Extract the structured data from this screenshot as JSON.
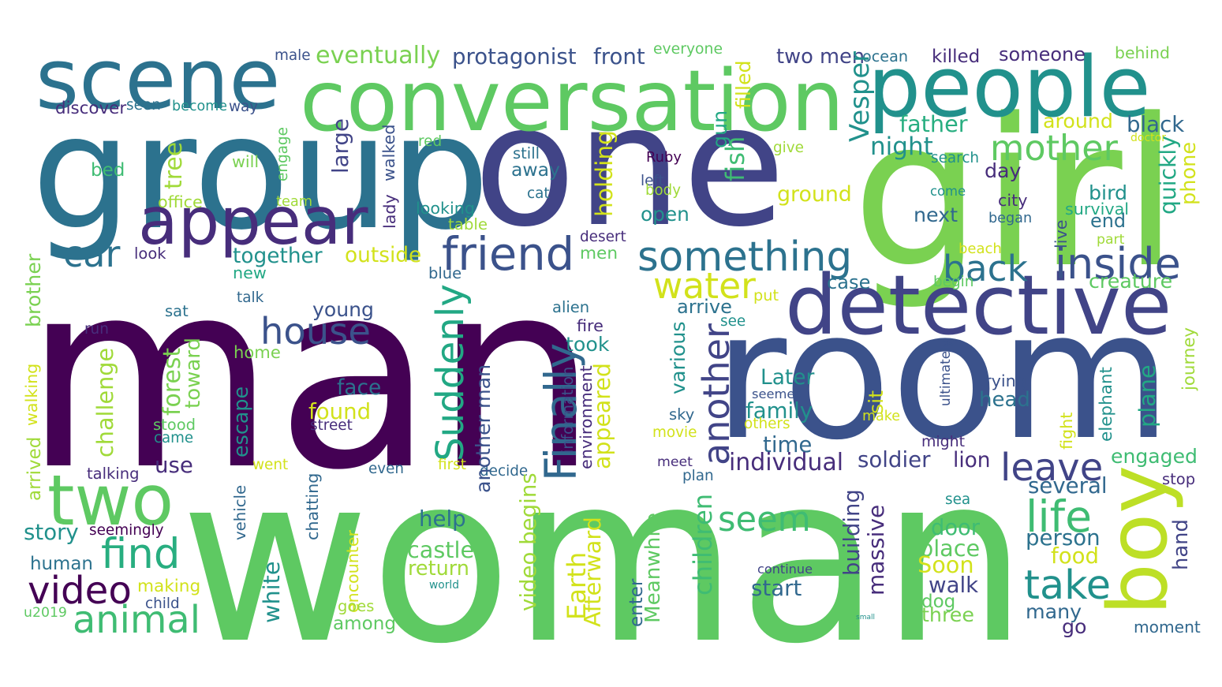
{
  "words": [
    {
      "text": "man",
      "color": "#440154"
    },
    {
      "text": "woman",
      "color": "#5ec962"
    },
    {
      "text": "room",
      "color": "#3b528b"
    },
    {
      "text": "group",
      "color": "#2c728e"
    },
    {
      "text": "one",
      "color": "#414487"
    },
    {
      "text": "girl",
      "color": "#7ad151"
    },
    {
      "text": "conversation",
      "color": "#5ec962"
    },
    {
      "text": "people",
      "color": "#21918c"
    },
    {
      "text": "scene",
      "color": "#2c728e"
    },
    {
      "text": "detective",
      "color": "#414487"
    },
    {
      "text": "appear",
      "color": "#472d7b"
    },
    {
      "text": "two",
      "color": "#5ec962"
    },
    {
      "text": "boy",
      "color": "#bddf26"
    },
    {
      "text": "friend",
      "color": "#3b528b"
    },
    {
      "text": "something",
      "color": "#2c728e"
    },
    {
      "text": "video",
      "color": "#440154"
    },
    {
      "text": "find",
      "color": "#28ae80"
    },
    {
      "text": "animal",
      "color": "#3fbc73"
    },
    {
      "text": "inside",
      "color": "#3b528b"
    },
    {
      "text": "back",
      "color": "#2c728e"
    },
    {
      "text": "water",
      "color": "#d2e21b"
    },
    {
      "text": "house",
      "color": "#3b528b"
    },
    {
      "text": "seem",
      "color": "#3fbc73"
    },
    {
      "text": "take",
      "color": "#21918c"
    },
    {
      "text": "life",
      "color": "#3fbc73"
    },
    {
      "text": "leave",
      "color": "#414487"
    },
    {
      "text": "another",
      "color": "#414487"
    },
    {
      "text": "Finally",
      "color": "#31688e"
    },
    {
      "text": "Suddenly",
      "color": "#22a884"
    },
    {
      "text": "mother",
      "color": "#5ec962"
    },
    {
      "text": "car",
      "color": "#2c728e"
    },
    {
      "text": "eventually",
      "color": "#7ad151"
    },
    {
      "text": "protagonist",
      "color": "#3b528b"
    },
    {
      "text": "front",
      "color": "#3b528b"
    },
    {
      "text": "everyone",
      "color": "#5ec962"
    },
    {
      "text": "filled",
      "color": "#d2e21b"
    },
    {
      "text": "two men",
      "color": "#414487"
    },
    {
      "text": "ocean",
      "color": "#2c728e"
    },
    {
      "text": "killed",
      "color": "#472d7b"
    },
    {
      "text": "someone",
      "color": "#472d7b"
    },
    {
      "text": "behind",
      "color": "#7ad151"
    },
    {
      "text": "male",
      "color": "#3b528b"
    },
    {
      "text": "discover",
      "color": "#472d7b"
    },
    {
      "text": "seen",
      "color": "#2c728e"
    },
    {
      "text": "become",
      "color": "#21918c"
    },
    {
      "text": "way",
      "color": "#3b528b"
    },
    {
      "text": "Vesper",
      "color": "#21918c"
    },
    {
      "text": "father",
      "color": "#28ae80"
    },
    {
      "text": "around",
      "color": "#d2e21b"
    },
    {
      "text": "black",
      "color": "#31688e"
    },
    {
      "text": "doctor",
      "color": "#d2e21b"
    },
    {
      "text": "gun",
      "color": "#22a884"
    },
    {
      "text": "still",
      "color": "#2c728e"
    },
    {
      "text": "red",
      "color": "#5ec962"
    },
    {
      "text": "night",
      "color": "#21918c"
    },
    {
      "text": "give",
      "color": "#a0da39"
    },
    {
      "text": "large",
      "color": "#414487"
    },
    {
      "text": "Ruby",
      "color": "#440154"
    },
    {
      "text": "search",
      "color": "#21918c"
    },
    {
      "text": "phone",
      "color": "#d2e21b"
    },
    {
      "text": "quickly",
      "color": "#22a884"
    },
    {
      "text": "fish",
      "color": "#3fbc73"
    },
    {
      "text": "walked",
      "color": "#3b528b"
    },
    {
      "text": "will",
      "color": "#7ad151"
    },
    {
      "text": "engage",
      "color": "#5ec962"
    },
    {
      "text": "tree",
      "color": "#a0da39"
    },
    {
      "text": "bed",
      "color": "#3fbc73"
    },
    {
      "text": "away",
      "color": "#2c728e"
    },
    {
      "text": "left",
      "color": "#3b528b"
    },
    {
      "text": "day",
      "color": "#472d7b"
    },
    {
      "text": "come",
      "color": "#21918c"
    },
    {
      "text": "city",
      "color": "#472d7b"
    },
    {
      "text": "bird",
      "color": "#21918c"
    },
    {
      "text": "holding",
      "color": "#d2e21b"
    },
    {
      "text": "cat",
      "color": "#2c728e"
    },
    {
      "text": "body",
      "color": "#a0da39"
    },
    {
      "text": "office",
      "color": "#a0da39"
    },
    {
      "text": "team",
      "color": "#a0da39"
    },
    {
      "text": "lady",
      "color": "#472d7b"
    },
    {
      "text": "looking",
      "color": "#21918c"
    },
    {
      "text": "ground",
      "color": "#d2e21b"
    },
    {
      "text": "open",
      "color": "#21918c"
    },
    {
      "text": "survival",
      "color": "#22a884"
    },
    {
      "text": "began",
      "color": "#31688e"
    },
    {
      "text": "live",
      "color": "#3b528b"
    },
    {
      "text": "end",
      "color": "#2c728e"
    },
    {
      "text": "next",
      "color": "#31688e"
    },
    {
      "text": "table",
      "color": "#a0da39"
    },
    {
      "text": "part",
      "color": "#a0da39"
    },
    {
      "text": "desert",
      "color": "#472d7b"
    },
    {
      "text": "beach",
      "color": "#d2e21b"
    },
    {
      "text": "look",
      "color": "#472d7b"
    },
    {
      "text": "together",
      "color": "#21918c"
    },
    {
      "text": "outside",
      "color": "#d2e21b"
    },
    {
      "text": "men",
      "color": "#5ec962"
    },
    {
      "text": "case",
      "color": "#2c728e"
    },
    {
      "text": "begin",
      "color": "#5ec962"
    },
    {
      "text": "creature",
      "color": "#5ec962"
    },
    {
      "text": "brother",
      "color": "#7ad151"
    },
    {
      "text": "new",
      "color": "#22a884"
    },
    {
      "text": "blue",
      "color": "#31688e"
    },
    {
      "text": "talk",
      "color": "#31688e"
    },
    {
      "text": "put",
      "color": "#d2e21b"
    },
    {
      "text": "arrive",
      "color": "#2c728e"
    },
    {
      "text": "sat",
      "color": "#2c728e"
    },
    {
      "text": "young",
      "color": "#3b528b"
    },
    {
      "text": "alien",
      "color": "#2c728e"
    },
    {
      "text": "see",
      "color": "#21918c"
    },
    {
      "text": "run",
      "color": "#472d7b"
    },
    {
      "text": "fire",
      "color": "#472d7b"
    },
    {
      "text": "took",
      "color": "#21918c"
    },
    {
      "text": "home",
      "color": "#7ad151"
    },
    {
      "text": "journey",
      "color": "#a0da39"
    },
    {
      "text": "ultimately",
      "color": "#3b528b"
    },
    {
      "text": "various",
      "color": "#21918c"
    },
    {
      "text": "walking",
      "color": "#d2e21b"
    },
    {
      "text": "challenge",
      "color": "#a0da39"
    },
    {
      "text": "forest",
      "color": "#7ad151"
    },
    {
      "text": "toward",
      "color": "#7ad151"
    },
    {
      "text": "face",
      "color": "#2c728e"
    },
    {
      "text": "Later",
      "color": "#21918c"
    },
    {
      "text": "seemed",
      "color": "#3b528b"
    },
    {
      "text": "trying",
      "color": "#3b528b"
    },
    {
      "text": "sit",
      "color": "#d2e21b"
    },
    {
      "text": "head",
      "color": "#2c728e"
    },
    {
      "text": "plane",
      "color": "#22a884"
    },
    {
      "text": "elephant",
      "color": "#21918c"
    },
    {
      "text": "found",
      "color": "#d2e21b"
    },
    {
      "text": "information",
      "color": "#3b528b"
    },
    {
      "text": "environment",
      "color": "#472d7b"
    },
    {
      "text": "family",
      "color": "#21918c"
    },
    {
      "text": "make",
      "color": "#d2e21b"
    },
    {
      "text": "fight",
      "color": "#d2e21b"
    },
    {
      "text": "escape",
      "color": "#21918c"
    },
    {
      "text": "arrived",
      "color": "#a0da39"
    },
    {
      "text": "sky",
      "color": "#31688e"
    },
    {
      "text": "others",
      "color": "#d2e21b"
    },
    {
      "text": "stood",
      "color": "#5ec962"
    },
    {
      "text": "street",
      "color": "#472d7b"
    },
    {
      "text": "appeared",
      "color": "#d2e21b"
    },
    {
      "text": "movie",
      "color": "#d2e21b"
    },
    {
      "text": "came",
      "color": "#21918c"
    },
    {
      "text": "time",
      "color": "#31688e"
    },
    {
      "text": "might",
      "color": "#472d7b"
    },
    {
      "text": "use",
      "color": "#472d7b"
    },
    {
      "text": "went",
      "color": "#d2e21b"
    },
    {
      "text": "first",
      "color": "#d2e21b"
    },
    {
      "text": "meet",
      "color": "#472d7b"
    },
    {
      "text": "individual",
      "color": "#472d7b"
    },
    {
      "text": "soldier",
      "color": "#414487"
    },
    {
      "text": "lion",
      "color": "#472d7b"
    },
    {
      "text": "engaged",
      "color": "#3fbc73"
    },
    {
      "text": "talking",
      "color": "#472d7b"
    },
    {
      "text": "even",
      "color": "#31688e"
    },
    {
      "text": "decide",
      "color": "#31688e"
    },
    {
      "text": "plan",
      "color": "#31688e"
    },
    {
      "text": "several",
      "color": "#31688e"
    },
    {
      "text": "stop",
      "color": "#472d7b"
    },
    {
      "text": "vehicle",
      "color": "#31688e"
    },
    {
      "text": "chatting",
      "color": "#31688e"
    },
    {
      "text": "another man",
      "color": "#3b528b"
    },
    {
      "text": "sea",
      "color": "#21918c"
    },
    {
      "text": "story",
      "color": "#21918c"
    },
    {
      "text": "seemingly",
      "color": "#440154"
    },
    {
      "text": "help",
      "color": "#2c728e"
    },
    {
      "text": "door",
      "color": "#3fbc73"
    },
    {
      "text": "person",
      "color": "#2c728e"
    },
    {
      "text": "video begins",
      "color": "#a0da39"
    },
    {
      "text": "children",
      "color": "#3fbc73"
    },
    {
      "text": "castle",
      "color": "#5ec962"
    },
    {
      "text": "Meanwhile",
      "color": "#5ec962"
    },
    {
      "text": "building",
      "color": "#414487"
    },
    {
      "text": "place",
      "color": "#5ec962"
    },
    {
      "text": "Soon",
      "color": "#d2e21b"
    },
    {
      "text": "human",
      "color": "#2c728e"
    },
    {
      "text": "food",
      "color": "#d2e21b"
    },
    {
      "text": "hand",
      "color": "#414487"
    },
    {
      "text": "Afterward",
      "color": "#d2e21b"
    },
    {
      "text": "encounter",
      "color": "#d2e21b"
    },
    {
      "text": "return",
      "color": "#a0da39"
    },
    {
      "text": "enter",
      "color": "#31688e"
    },
    {
      "text": "massive",
      "color": "#472d7b"
    },
    {
      "text": "continue",
      "color": "#414487"
    },
    {
      "text": "making",
      "color": "#d2e21b"
    },
    {
      "text": "white",
      "color": "#21918c"
    },
    {
      "text": "start",
      "color": "#31688e"
    },
    {
      "text": "walk",
      "color": "#414487"
    },
    {
      "text": "Earth",
      "color": "#d2e21b"
    },
    {
      "text": "world",
      "color": "#21918c"
    },
    {
      "text": "dog",
      "color": "#5ec962"
    },
    {
      "text": "u2019",
      "color": "#5ec962"
    },
    {
      "text": "child",
      "color": "#3b528b"
    },
    {
      "text": "goes",
      "color": "#a0da39"
    },
    {
      "text": "among",
      "color": "#5ec962"
    },
    {
      "text": "three",
      "color": "#7ad151"
    },
    {
      "text": "many",
      "color": "#31688e"
    },
    {
      "text": "small",
      "color": "#21918c"
    },
    {
      "text": "go",
      "color": "#472d7b"
    },
    {
      "text": "moment",
      "color": "#31688e"
    },
    {
      "text": "stand",
      "color": "#31688e"
    }
  ]
}
